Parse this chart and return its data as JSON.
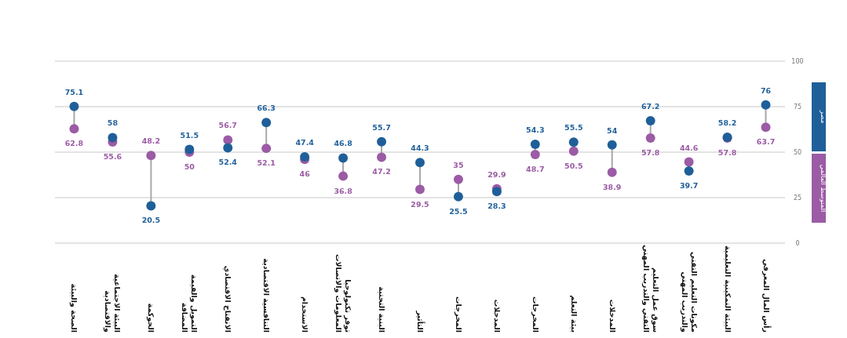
{
  "chart_data": {
    "type": "scatter",
    "categories": [
      "الصحة والبيئة",
      "البيئة الاجتماعية والاقتصادية",
      "الحوكمة",
      "التمويل والقيمة المضافة",
      "الانفتاح الاقتصادي",
      "التنافسية الاقتصادية",
      "الاستخدام",
      "توفر تكنولوجيا المعلومات والاتصالات",
      "البنية التحتية",
      "التأثير",
      "المخرجات",
      "المدخلات",
      "المخرجات",
      "بيئة التعلم",
      "المدخلات",
      "سوق عمل التعليم التقني والتدريب المهني",
      "مكونات التعليم التقني والتدريب المهني",
      "البيئة التمكينية التعليمية",
      "رأس المال المعرفي"
    ],
    "series": [
      {
        "name": "المتوسط العالمي",
        "color": "#9b5ba5",
        "values": [
          62.8,
          55.6,
          48.2,
          50,
          56.7,
          52.1,
          46,
          36.8,
          47.2,
          29.5,
          35,
          29.9,
          48.7,
          50.5,
          38.9,
          57.8,
          44.6,
          57.8,
          63.7
        ]
      },
      {
        "name": "مصر",
        "color": "#1f5f99",
        "values": [
          75.1,
          58,
          20.5,
          51.5,
          52.4,
          66.3,
          47.4,
          46.8,
          55.7,
          44.3,
          25.5,
          28.3,
          54.3,
          55.5,
          54,
          67.2,
          39.7,
          58.2,
          76
        ]
      }
    ],
    "ylim": [
      0,
      100
    ],
    "yticks": [
      0,
      25,
      50,
      75,
      100
    ],
    "grid": "y",
    "legend": "right",
    "marker": "circle",
    "data_labels": true
  }
}
